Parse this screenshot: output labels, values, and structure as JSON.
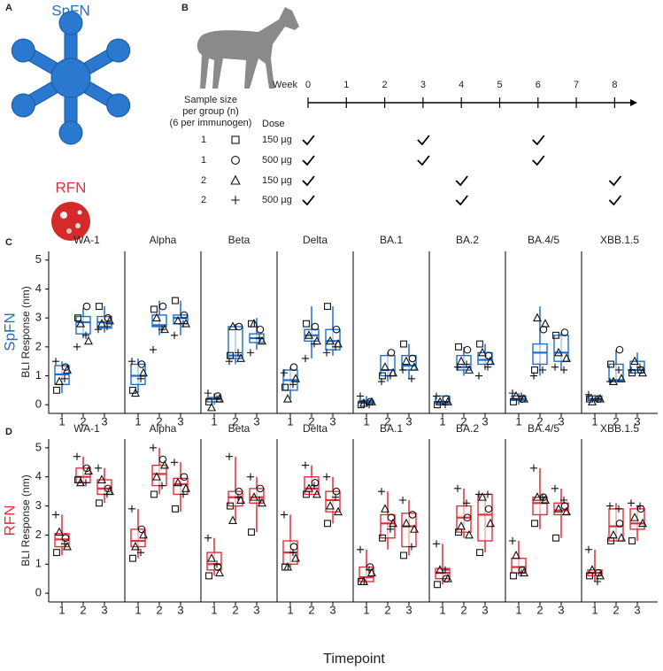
{
  "panels": {
    "a": "A",
    "b": "B",
    "c": "C",
    "d": "D"
  },
  "panel_a": {
    "top": "SpFN",
    "bottom": "RFN"
  },
  "schedule": {
    "week_label": "Week",
    "weeks": [
      0,
      1,
      2,
      3,
      4,
      5,
      6,
      7,
      8
    ],
    "sample_size_header": [
      "Sample size",
      "per group (n)",
      "(6 per immunogen)"
    ],
    "dose_header": "Dose",
    "rows": [
      {
        "n": "1",
        "marker": "square",
        "dose": "150 µg",
        "weeks": [
          0,
          3,
          6
        ]
      },
      {
        "n": "1",
        "marker": "circle",
        "dose": "500 µg",
        "weeks": [
          0,
          3,
          6
        ]
      },
      {
        "n": "2",
        "marker": "triangle",
        "dose": "150 µg",
        "weeks": [
          0,
          4,
          8
        ]
      },
      {
        "n": "2",
        "marker": "plus",
        "dose": "500 µg",
        "weeks": [
          0,
          4,
          8
        ]
      }
    ]
  },
  "row_labels": [
    {
      "text": "SpFN",
      "color": "#1f6fc6"
    },
    {
      "text": "RFN",
      "color": "#e0303b"
    }
  ],
  "y_axis_label": "BLI Response (nm)",
  "x_axis_label": "Timepoint",
  "markers": [
    "square",
    "circle",
    "triangle",
    "triangle",
    "plus",
    "plus"
  ],
  "chart_data": [
    {
      "type": "box",
      "row": 0,
      "title": "WA-1",
      "color": "#1f6fc6",
      "categories": [
        "1",
        "2",
        "3"
      ],
      "ylim": [
        -0.3,
        5.3
      ],
      "yticks": [
        0,
        1,
        2,
        3,
        4,
        5
      ],
      "boxes": [
        [
          0.4,
          0.7,
          1.05,
          1.35,
          1.5
        ],
        [
          2.3,
          2.45,
          2.85,
          3.05,
          3.35
        ],
        [
          2.5,
          2.65,
          2.85,
          3.05,
          3.4
        ]
      ],
      "points": [
        [
          0.5,
          3.0,
          3.4
        ],
        [
          1.3,
          3.4,
          3.0
        ],
        [
          0.8,
          2.8,
          2.8
        ],
        [
          1.2,
          2.2,
          2.9
        ],
        [
          1.5,
          2.0,
          2.6
        ],
        [
          0.9,
          2.4,
          2.7
        ]
      ]
    },
    {
      "type": "box",
      "row": 0,
      "title": "Alpha",
      "color": "#1f6fc6",
      "categories": [
        "1",
        "2",
        "3"
      ],
      "ylim": [
        -0.3,
        5.3
      ],
      "boxes": [
        [
          0.4,
          0.7,
          1.0,
          1.4,
          1.6
        ],
        [
          2.4,
          2.7,
          2.75,
          3.1,
          3.6
        ],
        [
          2.4,
          2.8,
          3.0,
          3.1,
          3.6
        ]
      ],
      "points": [
        [
          0.5,
          3.3,
          3.6
        ],
        [
          1.4,
          3.4,
          3.1
        ],
        [
          0.4,
          3.0,
          2.9
        ],
        [
          1.1,
          2.6,
          2.8
        ],
        [
          1.5,
          1.9,
          2.4
        ],
        [
          0.9,
          2.6,
          2.8
        ]
      ]
    },
    {
      "type": "box",
      "row": 0,
      "title": "Beta",
      "color": "#1f6fc6",
      "categories": [
        "1",
        "2",
        "3"
      ],
      "ylim": [
        -0.3,
        5.3
      ],
      "boxes": [
        [
          0,
          0.1,
          0.2,
          0.25,
          0.4
        ],
        [
          1.4,
          1.6,
          1.7,
          2.7,
          2.8
        ],
        [
          1.9,
          2.15,
          2.3,
          2.45,
          3.0
        ]
      ],
      "points": [
        [
          0.1,
          1.7,
          2.8
        ],
        [
          0.3,
          2.7,
          2.6
        ],
        [
          -0.1,
          2.7,
          2.8
        ],
        [
          0.2,
          1.6,
          2.2
        ],
        [
          0.4,
          1.5,
          1.8
        ],
        [
          0.2,
          1.8,
          2.3
        ]
      ]
    },
    {
      "type": "box",
      "row": 0,
      "title": "Delta",
      "color": "#1f6fc6",
      "categories": [
        "1",
        "2",
        "3"
      ],
      "ylim": [
        -0.3,
        5.3
      ],
      "boxes": [
        [
          0.2,
          0.5,
          0.85,
          1.2,
          1.3
        ],
        [
          1.6,
          2.2,
          2.4,
          2.6,
          3.4
        ],
        [
          1.7,
          1.9,
          2.2,
          2.6,
          3.4
        ]
      ],
      "points": [
        [
          0.6,
          2.8,
          3.4
        ],
        [
          1.3,
          2.7,
          2.6
        ],
        [
          0.2,
          2.4,
          2.2
        ],
        [
          0.9,
          2.2,
          2.1
        ],
        [
          1.1,
          1.6,
          1.8
        ],
        [
          0.7,
          2.1,
          2.0
        ]
      ]
    },
    {
      "type": "box",
      "row": 0,
      "title": "BA.1",
      "color": "#1f6fc6",
      "categories": [
        "1",
        "2",
        "3"
      ],
      "ylim": [
        -0.3,
        5.3
      ],
      "boxes": [
        [
          0,
          0.05,
          0.1,
          0.15,
          0.3
        ],
        [
          0.8,
          1.0,
          1.2,
          1.7,
          1.8
        ],
        [
          0.9,
          1.2,
          1.35,
          1.7,
          2.1
        ]
      ],
      "points": [
        [
          0.0,
          1.0,
          2.1
        ],
        [
          0.1,
          1.8,
          1.6
        ],
        [
          0.05,
          1.3,
          1.5
        ],
        [
          0.1,
          1.1,
          1.3
        ],
        [
          0.3,
          0.8,
          1.2
        ],
        [
          0,
          1.0,
          0.9
        ]
      ]
    },
    {
      "type": "box",
      "row": 0,
      "title": "BA.2",
      "color": "#1f6fc6",
      "categories": [
        "1",
        "2",
        "3"
      ],
      "ylim": [
        -0.3,
        5.3
      ],
      "boxes": [
        [
          0,
          0.05,
          0.1,
          0.3,
          0.3
        ],
        [
          1.0,
          1.2,
          1.3,
          1.7,
          2.0
        ],
        [
          1.2,
          1.4,
          1.55,
          1.8,
          2.1
        ]
      ],
      "points": [
        [
          0.0,
          2.0,
          2.1
        ],
        [
          0.2,
          1.9,
          1.7
        ],
        [
          0.1,
          1.5,
          1.8
        ],
        [
          0.1,
          1.2,
          1.5
        ],
        [
          0.3,
          1.3,
          1.0
        ],
        [
          0.0,
          1.4,
          1.3
        ]
      ]
    },
    {
      "type": "box",
      "row": 0,
      "title": "BA.4/5",
      "color": "#1f6fc6",
      "categories": [
        "1",
        "2",
        "3"
      ],
      "ylim": [
        -0.3,
        5.3
      ],
      "boxes": [
        [
          0,
          0.15,
          0.2,
          0.3,
          0.4
        ],
        [
          1.0,
          1.4,
          1.8,
          2.1,
          3.4
        ],
        [
          1.2,
          1.5,
          1.8,
          2.4,
          2.5
        ]
      ],
      "points": [
        [
          0.1,
          1.2,
          2.4
        ],
        [
          0.2,
          2.6,
          2.5
        ],
        [
          0.3,
          3.0,
          1.8
        ],
        [
          0.2,
          2.8,
          1.6
        ],
        [
          0.4,
          1.0,
          1.3
        ],
        [
          0.3,
          1.2,
          1.2
        ]
      ]
    },
    {
      "type": "box",
      "row": 0,
      "title": "XBB.1.5",
      "color": "#1f6fc6",
      "categories": [
        "1",
        "2",
        "3"
      ],
      "ylim": [
        -0.3,
        5.3
      ],
      "boxes": [
        [
          0.1,
          0.15,
          0.2,
          0.3,
          0.35
        ],
        [
          0.8,
          0.8,
          0.85,
          1.4,
          1.9
        ],
        [
          1.1,
          1.1,
          1.2,
          1.5,
          1.8
        ]
      ],
      "points": [
        [
          0.2,
          1.4,
          1.1
        ],
        [
          0.2,
          1.9,
          1.2
        ],
        [
          0.1,
          0.8,
          1.5
        ],
        [
          0.2,
          0.9,
          1.1
        ],
        [
          0.35,
          0.8,
          1.2
        ],
        [
          0.2,
          1.2,
          1.3
        ]
      ]
    },
    {
      "type": "box",
      "row": 1,
      "title": "WA-1",
      "color": "#e0303b",
      "categories": [
        "1",
        "2",
        "3"
      ],
      "ylim": [
        -0.3,
        5.3
      ],
      "yticks": [
        0,
        1,
        2,
        3,
        4,
        5
      ],
      "boxes": [
        [
          1.3,
          1.6,
          1.85,
          2.05,
          2.7
        ],
        [
          3.7,
          3.8,
          4.0,
          4.3,
          4.7
        ],
        [
          3.1,
          3.4,
          3.6,
          3.9,
          4.3
        ]
      ],
      "points": [
        [
          1.4,
          3.9,
          3.1
        ],
        [
          1.9,
          4.3,
          3.6
        ],
        [
          2.1,
          3.8,
          3.9
        ],
        [
          1.6,
          4.2,
          3.5
        ],
        [
          2.7,
          4.7,
          4.3
        ],
        [
          1.7,
          3.8,
          3.4
        ]
      ]
    },
    {
      "type": "box",
      "row": 1,
      "title": "Alpha",
      "color": "#e0303b",
      "categories": [
        "1",
        "2",
        "3"
      ],
      "ylim": [
        -0.3,
        5.3
      ],
      "boxes": [
        [
          1.2,
          1.6,
          1.8,
          2.2,
          2.9
        ],
        [
          3.4,
          3.7,
          4.1,
          4.4,
          5.0
        ],
        [
          2.8,
          3.4,
          3.75,
          3.95,
          4.5
        ]
      ],
      "points": [
        [
          1.2,
          3.4,
          2.9
        ],
        [
          2.2,
          4.6,
          4.0
        ],
        [
          1.6,
          4.0,
          3.8
        ],
        [
          2.0,
          4.4,
          3.6
        ],
        [
          2.9,
          5.0,
          4.5
        ],
        [
          1.4,
          3.7,
          3.4
        ]
      ]
    },
    {
      "type": "box",
      "row": 1,
      "title": "Beta",
      "color": "#e0303b",
      "categories": [
        "1",
        "2",
        "3"
      ],
      "ylim": [
        -0.3,
        5.3
      ],
      "boxes": [
        [
          0.6,
          0.8,
          1.0,
          1.4,
          1.9
        ],
        [
          2.5,
          3.0,
          3.3,
          3.5,
          4.7
        ],
        [
          2.1,
          3.1,
          3.3,
          3.6,
          4.0
        ]
      ],
      "points": [
        [
          0.6,
          3.0,
          2.1
        ],
        [
          0.9,
          3.5,
          3.6
        ],
        [
          1.2,
          2.5,
          3.3
        ],
        [
          0.7,
          3.2,
          3.1
        ],
        [
          1.9,
          4.7,
          4.0
        ],
        [
          1.0,
          3.3,
          3.2
        ]
      ]
    },
    {
      "type": "box",
      "row": 1,
      "title": "Delta",
      "color": "#e0303b",
      "categories": [
        "1",
        "2",
        "3"
      ],
      "ylim": [
        -0.3,
        5.3
      ],
      "boxes": [
        [
          0.9,
          1.0,
          1.4,
          1.8,
          2.7
        ],
        [
          3.4,
          3.4,
          3.6,
          4.0,
          4.4
        ],
        [
          2.4,
          2.8,
          3.2,
          3.5,
          4.0
        ]
      ],
      "points": [
        [
          0.9,
          3.4,
          2.4
        ],
        [
          1.6,
          3.8,
          3.5
        ],
        [
          0.9,
          3.6,
          3.0
        ],
        [
          1.2,
          3.4,
          2.8
        ],
        [
          2.7,
          4.4,
          4.0
        ],
        [
          1.4,
          3.7,
          3.3
        ]
      ]
    },
    {
      "type": "box",
      "row": 1,
      "title": "BA.1",
      "color": "#e0303b",
      "categories": [
        "1",
        "2",
        "3"
      ],
      "ylim": [
        -0.3,
        5.3
      ],
      "boxes": [
        [
          0.3,
          0.4,
          0.55,
          0.9,
          1.5
        ],
        [
          1.5,
          1.9,
          2.4,
          2.7,
          3.5
        ],
        [
          1.3,
          1.6,
          2.3,
          2.75,
          3.2
        ]
      ],
      "points": [
        [
          0.4,
          1.9,
          1.3
        ],
        [
          0.9,
          2.6,
          2.7
        ],
        [
          0.4,
          2.9,
          2.4
        ],
        [
          0.7,
          2.4,
          2.2
        ],
        [
          1.5,
          3.5,
          3.2
        ],
        [
          0.8,
          2.2,
          1.6
        ]
      ]
    },
    {
      "type": "box",
      "row": 1,
      "title": "BA.2",
      "color": "#e0303b",
      "categories": [
        "1",
        "2",
        "3"
      ],
      "ylim": [
        -0.3,
        5.3
      ],
      "boxes": [
        [
          0.3,
          0.5,
          0.7,
          0.85,
          1.7
        ],
        [
          1.9,
          2.1,
          2.6,
          3.0,
          3.6
        ],
        [
          1.4,
          1.8,
          2.7,
          3.4,
          3.4
        ]
      ],
      "points": [
        [
          0.3,
          2.1,
          1.4
        ],
        [
          0.5,
          2.6,
          2.9
        ],
        [
          0.8,
          2.3,
          3.3
        ],
        [
          0.5,
          2.0,
          2.4
        ],
        [
          1.7,
          3.6,
          3.4
        ],
        [
          0.8,
          3.1,
          3.4
        ]
      ]
    },
    {
      "type": "box",
      "row": 1,
      "title": "BA.4/5",
      "color": "#e0303b",
      "categories": [
        "1",
        "2",
        "3"
      ],
      "ylim": [
        -0.3,
        5.3
      ],
      "boxes": [
        [
          0.6,
          0.7,
          0.9,
          1.2,
          1.8
        ],
        [
          2.2,
          2.7,
          3.1,
          3.3,
          4.3
        ],
        [
          1.9,
          2.7,
          2.85,
          3.1,
          3.6
        ]
      ],
      "points": [
        [
          0.6,
          2.4,
          1.9
        ],
        [
          0.8,
          3.3,
          3.0
        ],
        [
          1.3,
          3.3,
          2.9
        ],
        [
          0.7,
          3.2,
          2.8
        ],
        [
          1.8,
          4.3,
          3.6
        ],
        [
          0.7,
          3.3,
          3.2
        ]
      ]
    },
    {
      "type": "box",
      "row": 1,
      "title": "XBB.1.5",
      "color": "#e0303b",
      "categories": [
        "1",
        "2",
        "3"
      ],
      "ylim": [
        -0.3,
        5.3
      ],
      "boxes": [
        [
          0.4,
          0.6,
          0.7,
          0.8,
          1.5
        ],
        [
          1.8,
          1.8,
          2.3,
          2.9,
          3.1
        ],
        [
          1.8,
          2.2,
          2.4,
          2.9,
          3.0
        ]
      ],
      "points": [
        [
          0.6,
          1.8,
          1.8
        ],
        [
          0.7,
          2.4,
          2.9
        ],
        [
          0.8,
          2.0,
          2.6
        ],
        [
          0.6,
          1.9,
          2.4
        ],
        [
          1.5,
          3.0,
          3.1
        ],
        [
          0.4,
          2.9,
          3.0
        ]
      ]
    }
  ]
}
